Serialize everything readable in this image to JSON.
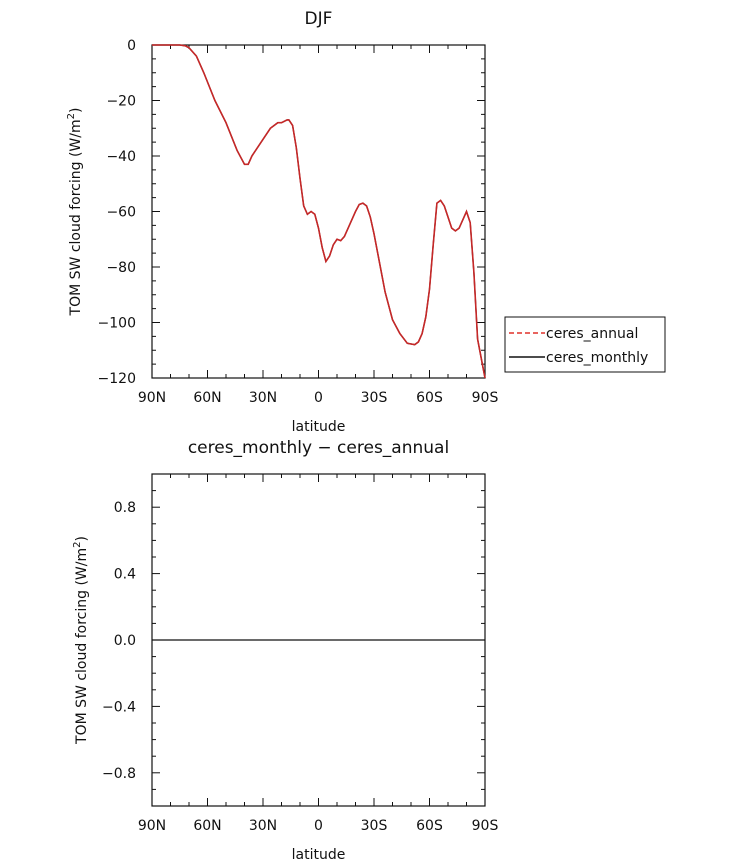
{
  "chart_data": [
    {
      "type": "line",
      "title": "DJF",
      "xlabel": "latitude",
      "ylabel": "TOM SW cloud forcing (W/m²)",
      "ylim": [
        -120,
        0
      ],
      "xlim": [
        90,
        -90
      ],
      "x_ticks": [
        90,
        60,
        30,
        0,
        -30,
        -60,
        -90
      ],
      "x_tick_labels": [
        "90N",
        "60N",
        "30N",
        "0",
        "30S",
        "60S",
        "90S"
      ],
      "y_ticks": [
        0,
        -20,
        -40,
        -60,
        -80,
        -100,
        -120
      ],
      "y_tick_labels": [
        "0",
        "−20",
        "−40",
        "−60",
        "−80",
        "−100",
        "−120"
      ],
      "legend": {
        "placement": "right-outside",
        "entries": [
          {
            "label": "ceres_annual",
            "color": "#e0302a",
            "dash": "dashed"
          },
          {
            "label": "ceres_monthly",
            "color": "#111111",
            "dash": "solid"
          }
        ]
      },
      "series": [
        {
          "name": "ceres_annual",
          "color": "#c62828",
          "dash": "dashed",
          "x": [
            90,
            80,
            75,
            72,
            70,
            66,
            62,
            56,
            50,
            44,
            40,
            38,
            36,
            34,
            30,
            26,
            22,
            20,
            17,
            16,
            14,
            12,
            10,
            8,
            6,
            4,
            2,
            0,
            -2,
            -4,
            -6,
            -8,
            -10,
            -12,
            -14,
            -16,
            -18,
            -20,
            -22,
            -24,
            -26,
            -28,
            -30,
            -32,
            -34,
            -36,
            -40,
            -44,
            -48,
            -52,
            -54,
            -56,
            -58,
            -60,
            -62,
            -64,
            -66,
            -68,
            -70,
            -72,
            -74,
            -76,
            -78,
            -80,
            -82,
            -84,
            -86,
            -88,
            -90
          ],
          "y": [
            0,
            0,
            0,
            -0.3,
            -1,
            -4,
            -10,
            -20,
            -28,
            -38,
            -43,
            -43,
            -40,
            -38,
            -34,
            -30,
            -28,
            -28,
            -27,
            -27,
            -29,
            -37,
            -48,
            -58,
            -61,
            -60,
            -61,
            -66,
            -73,
            -78,
            -76,
            -72,
            -70,
            -70.5,
            -69,
            -66,
            -63,
            -60,
            -57.5,
            -57,
            -58,
            -62,
            -68,
            -75,
            -82,
            -89,
            -99,
            -104,
            -107.5,
            -108,
            -107,
            -104,
            -98,
            -88,
            -72,
            -57,
            -56,
            -58,
            -62,
            -66,
            -67,
            -66,
            -63,
            -60,
            -64,
            -82,
            -106,
            -113,
            -120
          ]
        },
        {
          "name": "ceres_monthly",
          "color": "#111111",
          "dash": "solid",
          "x": [
            90,
            80,
            75,
            72,
            70,
            66,
            62,
            56,
            50,
            44,
            40,
            38,
            36,
            34,
            30,
            26,
            22,
            20,
            17,
            16,
            14,
            12,
            10,
            8,
            6,
            4,
            2,
            0,
            -2,
            -4,
            -6,
            -8,
            -10,
            -12,
            -14,
            -16,
            -18,
            -20,
            -22,
            -24,
            -26,
            -28,
            -30,
            -32,
            -34,
            -36,
            -40,
            -44,
            -48,
            -52,
            -54,
            -56,
            -58,
            -60,
            -62,
            -64,
            -66,
            -68,
            -70,
            -72,
            -74,
            -76,
            -78,
            -80,
            -82,
            -84,
            -86,
            -88,
            -90
          ],
          "y": [
            0,
            0,
            0,
            -0.3,
            -1,
            -4,
            -10,
            -20,
            -28,
            -38,
            -43,
            -43,
            -40,
            -38,
            -34,
            -30,
            -28,
            -28,
            -27,
            -27,
            -29,
            -37,
            -48,
            -58,
            -61,
            -60,
            -61,
            -66,
            -73,
            -78,
            -76,
            -72,
            -70,
            -70.5,
            -69,
            -66,
            -63,
            -60,
            -57.5,
            -57,
            -58,
            -62,
            -68,
            -75,
            -82,
            -89,
            -99,
            -104,
            -107.5,
            -108,
            -107,
            -104,
            -98,
            -88,
            -72,
            -57,
            -56,
            -58,
            -62,
            -66,
            -67,
            -66,
            -63,
            -60,
            -64,
            -82,
            -106,
            -113,
            -120
          ]
        }
      ]
    },
    {
      "type": "line",
      "title": "ceres_monthly − ceres_annual",
      "xlabel": "latitude",
      "ylabel": "TOM SW cloud forcing (W/m²)",
      "ylim": [
        -1,
        1
      ],
      "xlim": [
        90,
        -90
      ],
      "x_ticks": [
        90,
        60,
        30,
        0,
        -30,
        -60,
        -90
      ],
      "x_tick_labels": [
        "90N",
        "60N",
        "30N",
        "0",
        "30S",
        "60S",
        "90S"
      ],
      "y_ticks": [
        0.8,
        0.4,
        0.0,
        -0.4,
        -0.8
      ],
      "y_tick_labels": [
        "0.8",
        "0.4",
        "0.0",
        "−0.4",
        "−0.8"
      ],
      "series": [
        {
          "color": "#111111",
          "dash": "solid",
          "x": [
            90,
            -90
          ],
          "y": [
            0,
            0
          ]
        }
      ]
    }
  ]
}
